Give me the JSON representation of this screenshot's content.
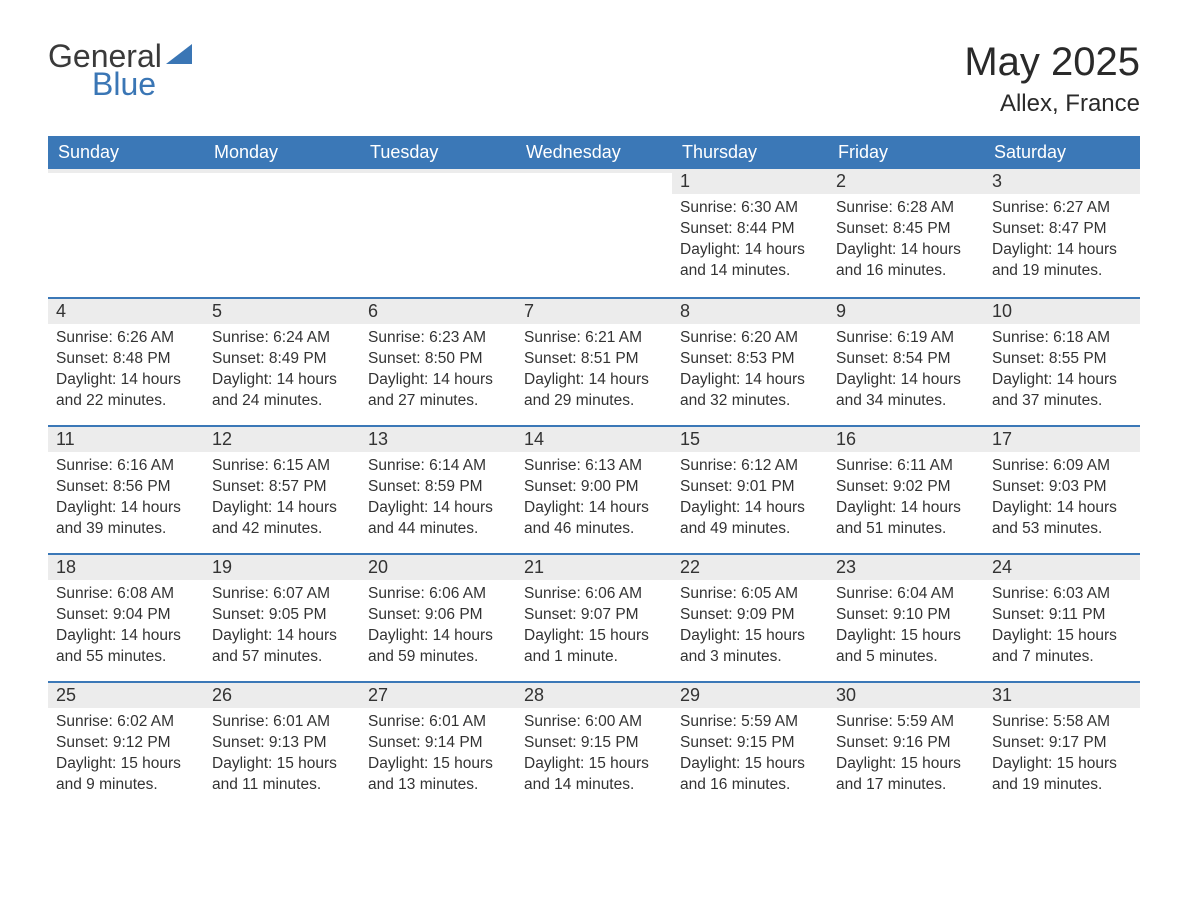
{
  "logo": {
    "general": "General",
    "blue": "Blue"
  },
  "title": "May 2025",
  "location": "Allex, France",
  "weekdays": [
    "Sunday",
    "Monday",
    "Tuesday",
    "Wednesday",
    "Thursday",
    "Friday",
    "Saturday"
  ],
  "colors": {
    "header_bg": "#3b78b7",
    "header_text": "#ffffff",
    "daynum_bg": "#ececec",
    "cell_border": "#3b78b7",
    "body_text": "#333333",
    "logo_blue": "#3a76b5",
    "background": "#ffffff"
  },
  "fonts": {
    "title_size_pt": 30,
    "location_size_pt": 18,
    "weekday_size_pt": 14,
    "daynum_size_pt": 14,
    "body_size_pt": 12
  },
  "grid": {
    "columns": 7,
    "rows": 5,
    "first_weekday_index": 4
  },
  "days": [
    {
      "n": 1,
      "sunrise": "6:30 AM",
      "sunset": "8:44 PM",
      "daylight": "14 hours and 14 minutes."
    },
    {
      "n": 2,
      "sunrise": "6:28 AM",
      "sunset": "8:45 PM",
      "daylight": "14 hours and 16 minutes."
    },
    {
      "n": 3,
      "sunrise": "6:27 AM",
      "sunset": "8:47 PM",
      "daylight": "14 hours and 19 minutes."
    },
    {
      "n": 4,
      "sunrise": "6:26 AM",
      "sunset": "8:48 PM",
      "daylight": "14 hours and 22 minutes."
    },
    {
      "n": 5,
      "sunrise": "6:24 AM",
      "sunset": "8:49 PM",
      "daylight": "14 hours and 24 minutes."
    },
    {
      "n": 6,
      "sunrise": "6:23 AM",
      "sunset": "8:50 PM",
      "daylight": "14 hours and 27 minutes."
    },
    {
      "n": 7,
      "sunrise": "6:21 AM",
      "sunset": "8:51 PM",
      "daylight": "14 hours and 29 minutes."
    },
    {
      "n": 8,
      "sunrise": "6:20 AM",
      "sunset": "8:53 PM",
      "daylight": "14 hours and 32 minutes."
    },
    {
      "n": 9,
      "sunrise": "6:19 AM",
      "sunset": "8:54 PM",
      "daylight": "14 hours and 34 minutes."
    },
    {
      "n": 10,
      "sunrise": "6:18 AM",
      "sunset": "8:55 PM",
      "daylight": "14 hours and 37 minutes."
    },
    {
      "n": 11,
      "sunrise": "6:16 AM",
      "sunset": "8:56 PM",
      "daylight": "14 hours and 39 minutes."
    },
    {
      "n": 12,
      "sunrise": "6:15 AM",
      "sunset": "8:57 PM",
      "daylight": "14 hours and 42 minutes."
    },
    {
      "n": 13,
      "sunrise": "6:14 AM",
      "sunset": "8:59 PM",
      "daylight": "14 hours and 44 minutes."
    },
    {
      "n": 14,
      "sunrise": "6:13 AM",
      "sunset": "9:00 PM",
      "daylight": "14 hours and 46 minutes."
    },
    {
      "n": 15,
      "sunrise": "6:12 AM",
      "sunset": "9:01 PM",
      "daylight": "14 hours and 49 minutes."
    },
    {
      "n": 16,
      "sunrise": "6:11 AM",
      "sunset": "9:02 PM",
      "daylight": "14 hours and 51 minutes."
    },
    {
      "n": 17,
      "sunrise": "6:09 AM",
      "sunset": "9:03 PM",
      "daylight": "14 hours and 53 minutes."
    },
    {
      "n": 18,
      "sunrise": "6:08 AM",
      "sunset": "9:04 PM",
      "daylight": "14 hours and 55 minutes."
    },
    {
      "n": 19,
      "sunrise": "6:07 AM",
      "sunset": "9:05 PM",
      "daylight": "14 hours and 57 minutes."
    },
    {
      "n": 20,
      "sunrise": "6:06 AM",
      "sunset": "9:06 PM",
      "daylight": "14 hours and 59 minutes."
    },
    {
      "n": 21,
      "sunrise": "6:06 AM",
      "sunset": "9:07 PM",
      "daylight": "15 hours and 1 minute."
    },
    {
      "n": 22,
      "sunrise": "6:05 AM",
      "sunset": "9:09 PM",
      "daylight": "15 hours and 3 minutes."
    },
    {
      "n": 23,
      "sunrise": "6:04 AM",
      "sunset": "9:10 PM",
      "daylight": "15 hours and 5 minutes."
    },
    {
      "n": 24,
      "sunrise": "6:03 AM",
      "sunset": "9:11 PM",
      "daylight": "15 hours and 7 minutes."
    },
    {
      "n": 25,
      "sunrise": "6:02 AM",
      "sunset": "9:12 PM",
      "daylight": "15 hours and 9 minutes."
    },
    {
      "n": 26,
      "sunrise": "6:01 AM",
      "sunset": "9:13 PM",
      "daylight": "15 hours and 11 minutes."
    },
    {
      "n": 27,
      "sunrise": "6:01 AM",
      "sunset": "9:14 PM",
      "daylight": "15 hours and 13 minutes."
    },
    {
      "n": 28,
      "sunrise": "6:00 AM",
      "sunset": "9:15 PM",
      "daylight": "15 hours and 14 minutes."
    },
    {
      "n": 29,
      "sunrise": "5:59 AM",
      "sunset": "9:15 PM",
      "daylight": "15 hours and 16 minutes."
    },
    {
      "n": 30,
      "sunrise": "5:59 AM",
      "sunset": "9:16 PM",
      "daylight": "15 hours and 17 minutes."
    },
    {
      "n": 31,
      "sunrise": "5:58 AM",
      "sunset": "9:17 PM",
      "daylight": "15 hours and 19 minutes."
    }
  ],
  "labels": {
    "sunrise": "Sunrise: ",
    "sunset": "Sunset: ",
    "daylight": "Daylight: "
  }
}
